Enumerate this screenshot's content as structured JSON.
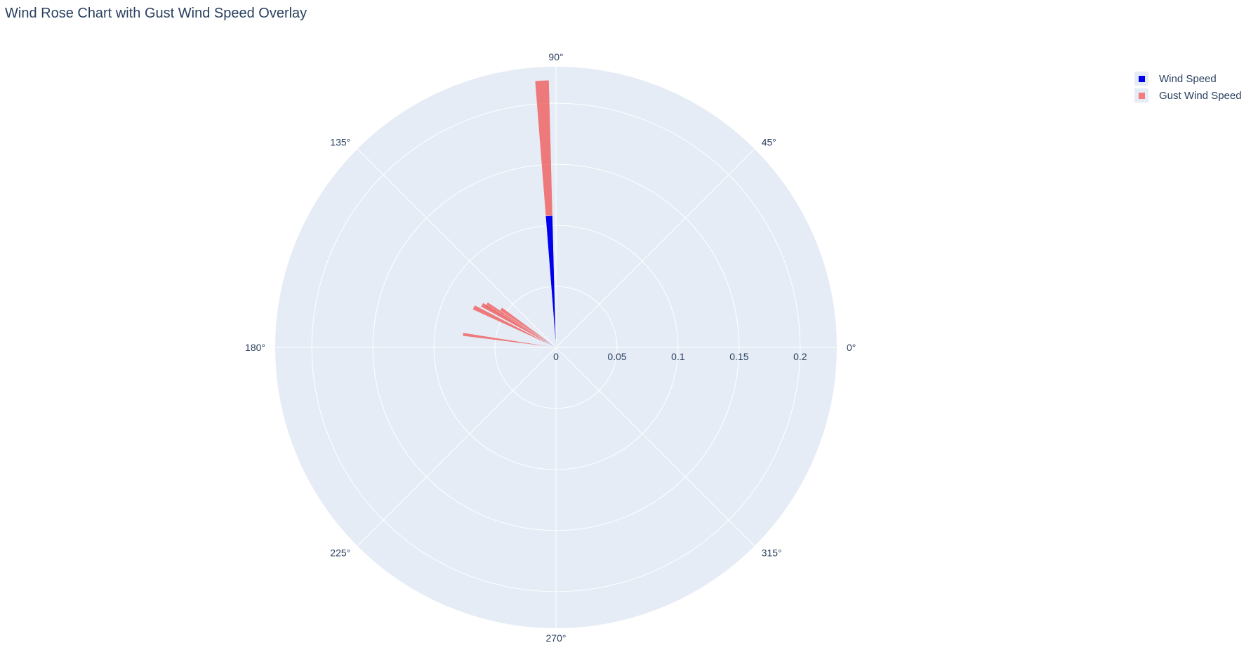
{
  "chart_data": {
    "type": "barpolar",
    "title": "Wind Rose Chart with Gust Wind Speed Overlay",
    "angular_axis": {
      "unit": "degrees",
      "rotation": 0,
      "direction": "counterclockwise",
      "ticks": [
        {
          "angle": 0,
          "label": "0°"
        },
        {
          "angle": 45,
          "label": "45°"
        },
        {
          "angle": 90,
          "label": "90°"
        },
        {
          "angle": 135,
          "label": "135°"
        },
        {
          "angle": 180,
          "label": "180°"
        },
        {
          "angle": 225,
          "label": "225°"
        },
        {
          "angle": 270,
          "label": "270°"
        },
        {
          "angle": 315,
          "label": "315°"
        }
      ]
    },
    "radial_axis": {
      "range": [
        0,
        0.23
      ],
      "ticks": [
        {
          "value": 0,
          "label": "0"
        },
        {
          "value": 0.05,
          "label": "0.05"
        },
        {
          "value": 0.1,
          "label": "0.1"
        },
        {
          "value": 0.15,
          "label": "0.15"
        },
        {
          "value": 0.2,
          "label": "0.2"
        }
      ]
    },
    "grid": true,
    "legend_position": "top-right",
    "series": [
      {
        "name": "Wind Speed",
        "color": "#0000ee",
        "opacity": 1,
        "stack_order": 0,
        "points": [
          {
            "theta": 93,
            "r": 0.108,
            "width": 3
          },
          {
            "theta": 145,
            "r": 0.008,
            "width": 3
          },
          {
            "theta": 148,
            "r": 0.012,
            "width": 3
          },
          {
            "theta": 150,
            "r": 0.006,
            "width": 3
          },
          {
            "theta": 152,
            "r": 0.003,
            "width": 3
          },
          {
            "theta": 154,
            "r": 0.006,
            "width": 3
          }
        ]
      },
      {
        "name": "Gust Wind Speed",
        "color": "#ef5350",
        "opacity": 0.75,
        "stack_order": 1,
        "points": [
          {
            "theta": 93,
            "r": 0.111,
            "width": 3
          },
          {
            "theta": 145,
            "r": 0.047,
            "width": 3
          },
          {
            "theta": 148,
            "r": 0.055,
            "width": 3
          },
          {
            "theta": 150,
            "r": 0.064,
            "width": 3
          },
          {
            "theta": 154,
            "r": 0.069,
            "width": 3
          },
          {
            "theta": 172,
            "r": 0.077,
            "width": 2
          },
          {
            "theta": 66,
            "r": 0.005,
            "width": 3
          },
          {
            "theta": 320,
            "r": 0.006,
            "width": 3
          }
        ]
      }
    ]
  },
  "legend": {
    "items": [
      {
        "label": "Wind Speed",
        "color": "#0000ee"
      },
      {
        "label": "Gust Wind Speed",
        "color": "#f47c7c"
      }
    ]
  }
}
